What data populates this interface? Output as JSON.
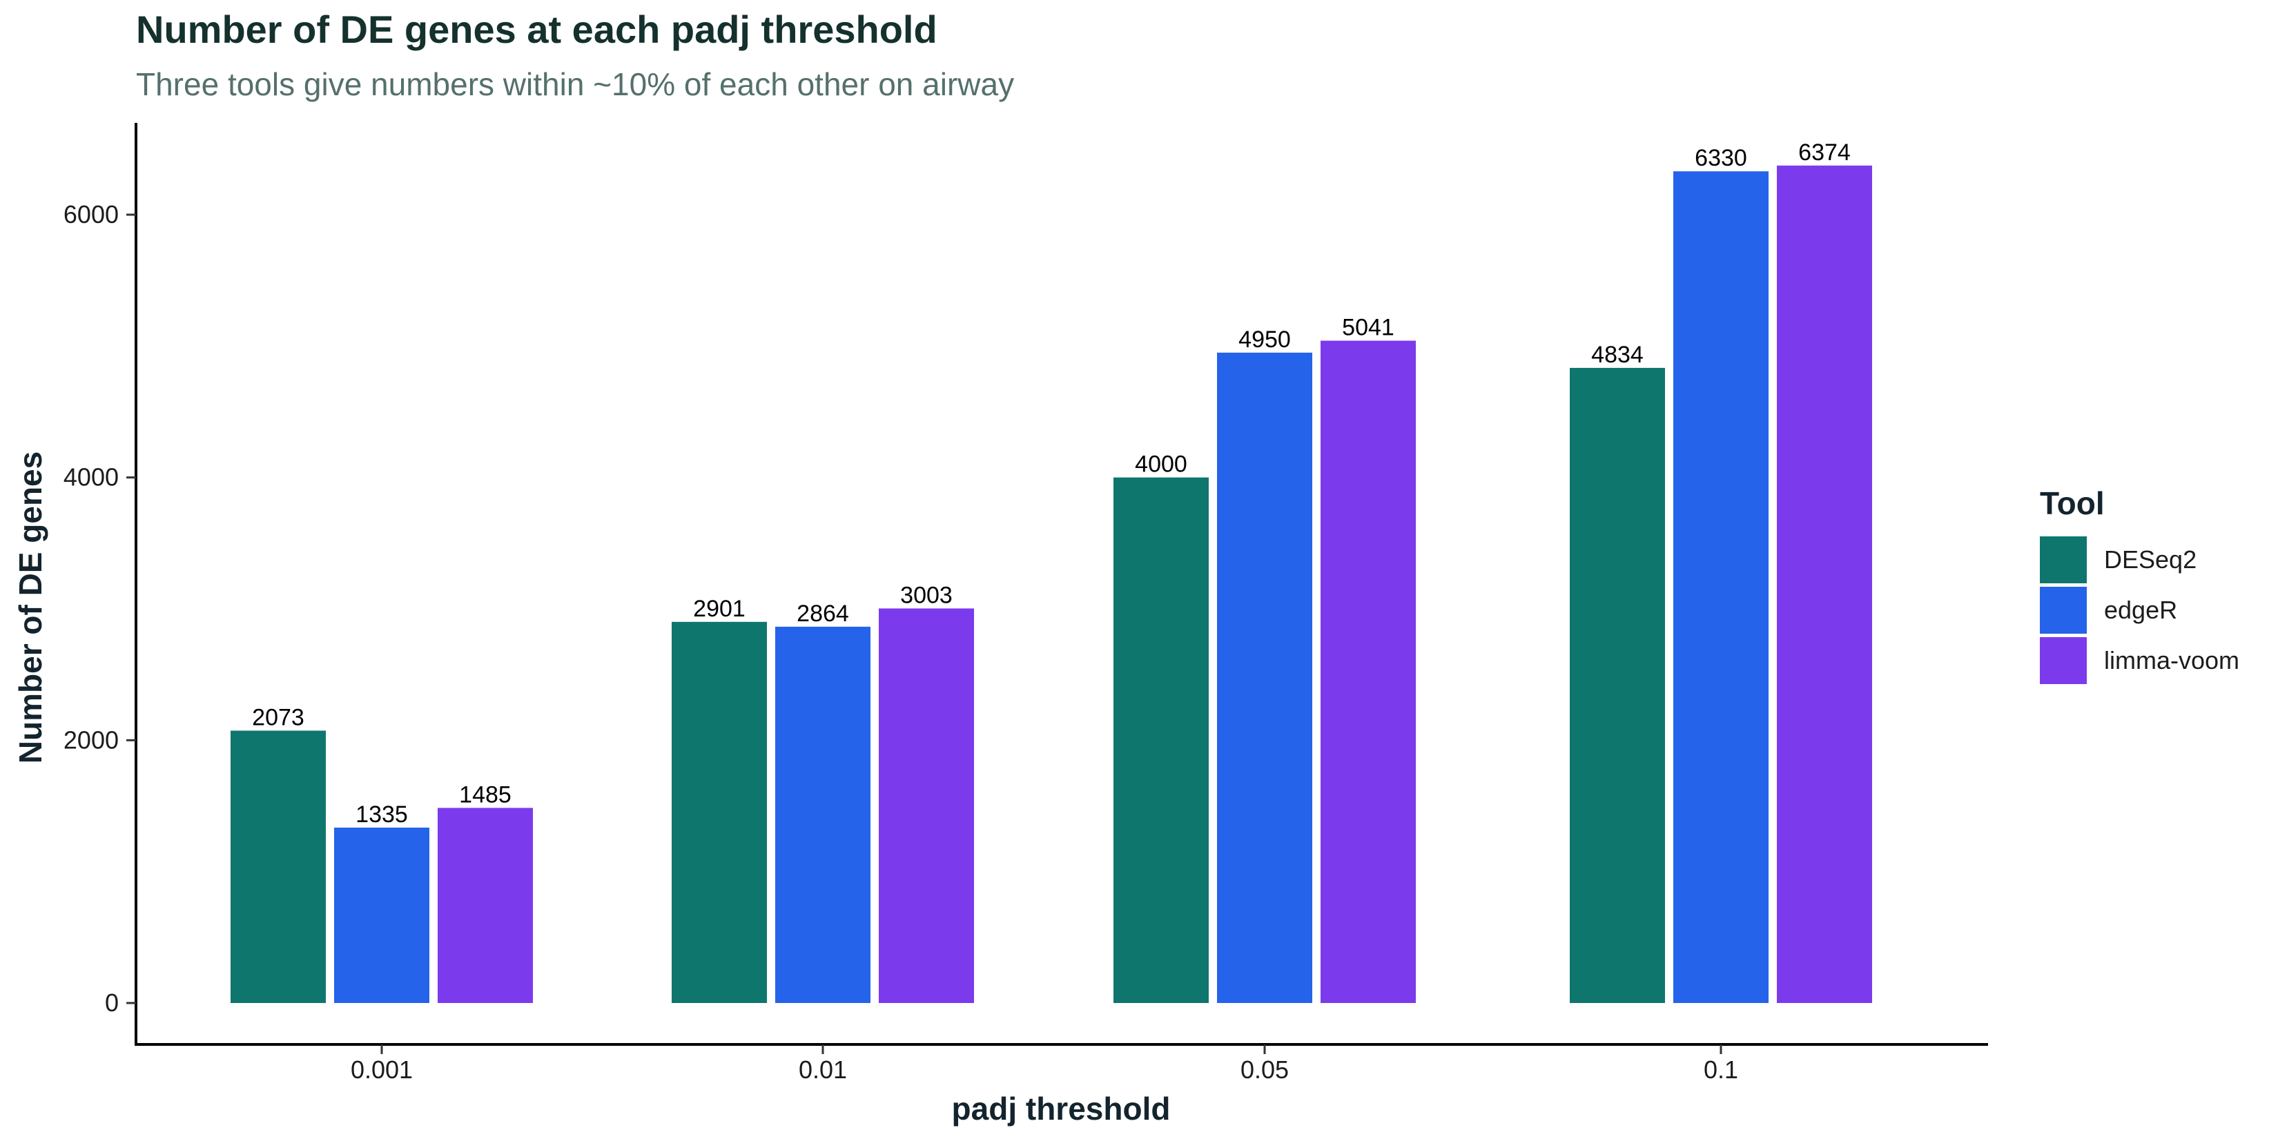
{
  "chart_data": {
    "type": "bar",
    "title": "Number of DE genes at each padj threshold",
    "subtitle": "Three tools give numbers within ~10% of each other on airway",
    "xlabel": "padj threshold",
    "ylabel": "Number of DE genes",
    "categories": [
      "0.001",
      "0.01",
      "0.05",
      "0.1"
    ],
    "series": [
      {
        "name": "DESeq2",
        "color": "#0f766e",
        "values": [
          2073,
          2901,
          4000,
          4834
        ]
      },
      {
        "name": "edgeR",
        "color": "#2563eb",
        "values": [
          1335,
          2864,
          4950,
          6330
        ]
      },
      {
        "name": "limma-voom",
        "color": "#7c3aed",
        "values": [
          1485,
          3003,
          5041,
          6374
        ]
      }
    ],
    "yticks": [
      "0",
      "2000",
      "4000",
      "6000"
    ],
    "ylim": [
      0,
      6700
    ],
    "legend": {
      "title": "Tool",
      "position": "right"
    },
    "grid": false
  }
}
